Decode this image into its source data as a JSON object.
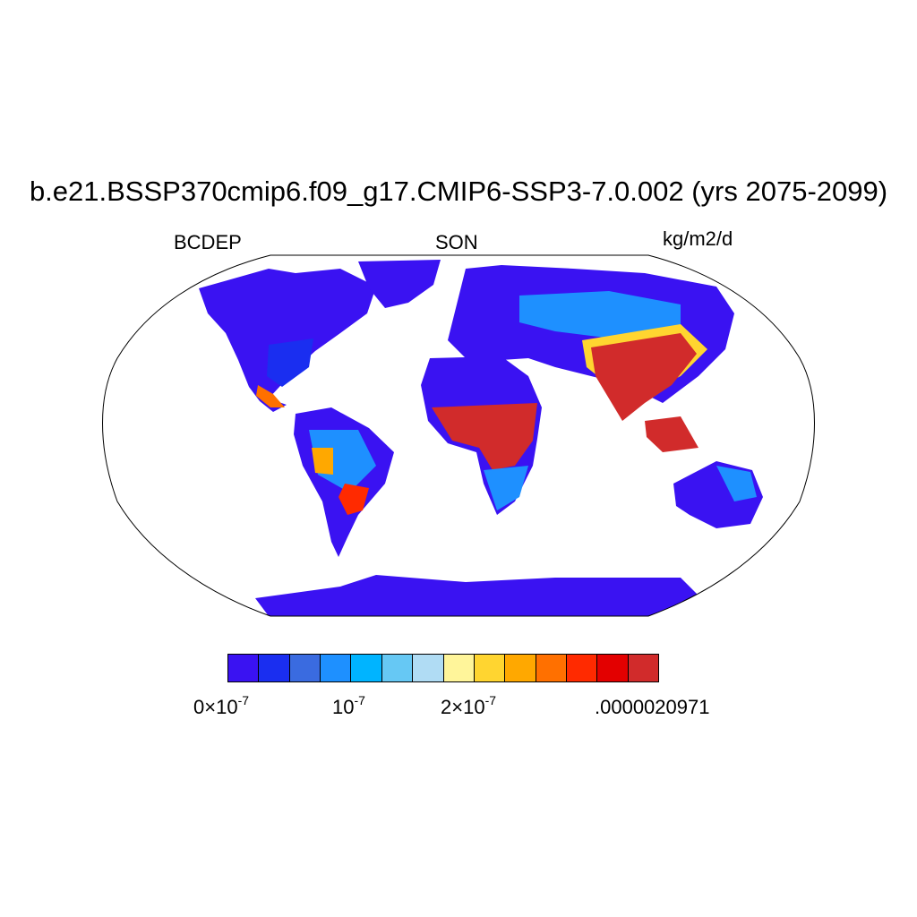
{
  "title": "b.e21.BSSP370cmip6.f09_g17.CMIP6-SSP3-7.0.002 (yrs 2075-2099)",
  "left_label": "BCDEP",
  "center_label": "SON",
  "right_label": "kg/m2/d",
  "colorbar": {
    "colors": [
      "#3a12f2",
      "#1a2ef0",
      "#3a6be0",
      "#1e90ff",
      "#00b4ff",
      "#66c8f4",
      "#b0dcf4",
      "#fff59a",
      "#ffd530",
      "#ffa800",
      "#ff7000",
      "#ff2a00",
      "#e30000",
      "#d12b2b"
    ],
    "labels": [
      {
        "base": "0×10",
        "exp": "-7"
      },
      {
        "base": "10",
        "exp": "-7"
      },
      {
        "base": "2×10",
        "exp": "-7"
      },
      {
        "base": ".0000020971",
        "exp": ""
      }
    ]
  },
  "map": {
    "projection": "robinson",
    "background_color": "#ffffff",
    "low_color": "#3a12f2",
    "high_color": "#d12b2b"
  }
}
